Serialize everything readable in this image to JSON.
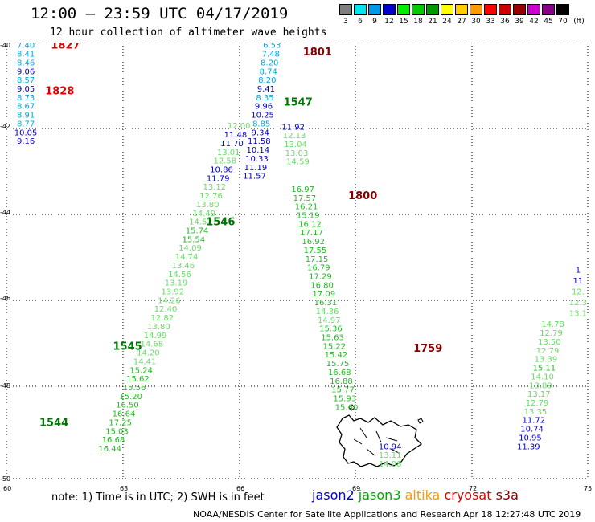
{
  "header": {
    "title": "12:00 – 23:59 UTC 04/17/2019",
    "subtitle": "12 hour collection of altimeter wave heights"
  },
  "legend": {
    "units": "(ft)",
    "bins": [
      {
        "label": "3",
        "color": "#7f7f7f"
      },
      {
        "label": "6",
        "color": "#00e5ee"
      },
      {
        "label": "9",
        "color": "#0099e6"
      },
      {
        "label": "12",
        "color": "#0000cc"
      },
      {
        "label": "15",
        "color": "#00ee00"
      },
      {
        "label": "18",
        "color": "#00cc00"
      },
      {
        "label": "21",
        "color": "#009900"
      },
      {
        "label": "24",
        "color": "#ffff00"
      },
      {
        "label": "27",
        "color": "#ffcc00"
      },
      {
        "label": "30",
        "color": "#ff9900"
      },
      {
        "label": "33",
        "color": "#ff0000"
      },
      {
        "label": "36",
        "color": "#cc0000"
      },
      {
        "label": "39",
        "color": "#990000"
      },
      {
        "label": "42",
        "color": "#cc00cc"
      },
      {
        "label": "45",
        "color": "#880088"
      },
      {
        "label": "70",
        "color": "#000000"
      }
    ]
  },
  "axes": {
    "lat_labels": [
      "-40",
      "-42",
      "-44",
      "-46",
      "-48",
      "-50"
    ],
    "lon_labels": [
      "60",
      "63",
      "66",
      "69",
      "72",
      "75"
    ]
  },
  "colors": {
    "c_light": "#66dd66",
    "c_mid": "#22bb22",
    "c_blue": "#0000cc",
    "c_cyan": "#00aadd",
    "c_red": "#dd0000",
    "c_maroon": "#880000",
    "c_dgreen": "#007700"
  },
  "map_data": {
    "time_labels": [
      {
        "t": "1827",
        "lat": -40.05,
        "lon": 61.15,
        "c": "c_red"
      },
      {
        "t": "1828",
        "lat": -41.1,
        "lon": 61.0,
        "c": "c_red"
      },
      {
        "t": "1801",
        "lat": -40.2,
        "lon": 67.65,
        "c": "c_maroon"
      },
      {
        "t": "1547",
        "lat": -41.35,
        "lon": 67.15,
        "c": "c_dgreen"
      },
      {
        "t": "1800",
        "lat": -43.5,
        "lon": 68.82,
        "c": "c_maroon"
      },
      {
        "t": "1546",
        "lat": -44.1,
        "lon": 65.15,
        "c": "c_dgreen"
      },
      {
        "t": "1759",
        "lat": -47.0,
        "lon": 70.5,
        "c": "c_maroon"
      },
      {
        "t": "1545",
        "lat": -46.95,
        "lon": 62.75,
        "c": "c_dgreen"
      },
      {
        "t": "1544",
        "lat": -48.7,
        "lon": 60.85,
        "c": "c_dgreen"
      }
    ],
    "obs_groups": [
      {
        "name": "track-s3a-1827",
        "lat0": -40.05,
        "lon0": 60.5,
        "dlat": 0.2,
        "dlon": 0.0,
        "values": [
          {
            "v": "7.40",
            "c": "c_cyan"
          },
          {
            "v": "8.41",
            "c": "c_cyan"
          },
          {
            "v": "8.46",
            "c": "c_cyan"
          },
          {
            "v": "9.06",
            "c": "c_blue"
          },
          {
            "v": "8.57",
            "c": "c_cyan"
          },
          {
            "v": "9.05",
            "c": "c_blue"
          },
          {
            "v": "8.73",
            "c": "c_cyan"
          },
          {
            "v": "8.67",
            "c": "c_cyan"
          },
          {
            "v": "8.91",
            "c": "c_cyan"
          },
          {
            "v": "8.77",
            "c": "c_cyan"
          },
          {
            "v": "10.05",
            "c": "c_blue"
          },
          {
            "v": "9.16",
            "c": "c_blue"
          }
        ]
      },
      {
        "name": "track-1801-north",
        "lat0": -40.05,
        "lon0": 66.85,
        "dlat": 0.2,
        "dlon": -0.03,
        "values": [
          {
            "v": "6.53",
            "c": "c_cyan"
          },
          {
            "v": "7.48",
            "c": "c_cyan"
          },
          {
            "v": "8.20",
            "c": "c_cyan"
          },
          {
            "v": "8.74",
            "c": "c_cyan"
          },
          {
            "v": "8.20",
            "c": "c_cyan"
          },
          {
            "v": "9.41",
            "c": "c_blue"
          },
          {
            "v": "8.35",
            "c": "c_cyan"
          },
          {
            "v": "9.96",
            "c": "c_blue"
          },
          {
            "v": "10.25",
            "c": "c_blue"
          },
          {
            "v": "8.85",
            "c": "c_cyan"
          },
          {
            "v": "9.34",
            "c": "c_blue"
          },
          {
            "v": "11.58",
            "c": "c_blue"
          },
          {
            "v": "10.14",
            "c": "c_blue"
          },
          {
            "v": "10.33",
            "c": "c_blue"
          },
          {
            "v": "11.19",
            "c": "c_blue"
          },
          {
            "v": "11.57",
            "c": "c_blue"
          }
        ]
      },
      {
        "name": "track-1546",
        "lat0": -41.9,
        "lon0": 66.0,
        "dlat": 0.2,
        "dlon": -0.09,
        "values": [
          {
            "v": "12.00",
            "c": "c_light"
          },
          {
            "v": "11.48",
            "c": "c_blue"
          },
          {
            "v": "11.70",
            "c": "c_blue"
          },
          {
            "v": "13.01",
            "c": "c_light"
          },
          {
            "v": "12.58",
            "c": "c_light"
          },
          {
            "v": "10.86",
            "c": "c_blue"
          },
          {
            "v": "11.79",
            "c": "c_blue"
          },
          {
            "v": "13.12",
            "c": "c_light"
          },
          {
            "v": "12.76",
            "c": "c_light"
          },
          {
            "v": "13.80",
            "c": "c_light"
          },
          {
            "v": "14.49",
            "c": "c_light"
          },
          {
            "v": "14.52",
            "c": "c_light"
          },
          {
            "v": "15.74",
            "c": "c_mid"
          },
          {
            "v": "15.54",
            "c": "c_mid"
          },
          {
            "v": "14.09",
            "c": "c_light"
          },
          {
            "v": "14.74",
            "c": "c_light"
          },
          {
            "v": "13.46",
            "c": "c_light"
          },
          {
            "v": "14.56",
            "c": "c_light"
          },
          {
            "v": "13.19",
            "c": "c_light"
          },
          {
            "v": "13.92",
            "c": "c_light"
          },
          {
            "v": "14.26",
            "c": "c_light"
          },
          {
            "v": "12.40",
            "c": "c_light"
          },
          {
            "v": "12.82",
            "c": "c_light"
          },
          {
            "v": "13.80",
            "c": "c_light"
          },
          {
            "v": "14.99",
            "c": "c_light"
          },
          {
            "v": "14.68",
            "c": "c_light"
          },
          {
            "v": "14.20",
            "c": "c_light"
          },
          {
            "v": "14.41",
            "c": "c_light"
          },
          {
            "v": "15.24",
            "c": "c_mid"
          },
          {
            "v": "15.62",
            "c": "c_mid"
          },
          {
            "v": "15.56",
            "c": "c_mid"
          },
          {
            "v": "15.20",
            "c": "c_mid"
          },
          {
            "v": "16.50",
            "c": "c_mid"
          },
          {
            "v": "16.64",
            "c": "c_mid"
          },
          {
            "v": "17.25",
            "c": "c_mid"
          },
          {
            "v": "15.03",
            "c": "c_mid"
          },
          {
            "v": "16.68",
            "c": "c_mid"
          },
          {
            "v": "16.44",
            "c": "c_mid"
          }
        ]
      },
      {
        "name": "track-1800",
        "lat0": -41.92,
        "lon0": 67.4,
        "dlat": 0.2,
        "dlon": 0.03,
        "values": [
          {
            "v": "11.92",
            "c": "c_blue"
          },
          {
            "v": "12.13",
            "c": "c_light"
          },
          {
            "v": "13.04",
            "c": "c_light"
          },
          {
            "v": "13.03",
            "c": "c_light"
          },
          {
            "v": "14.59",
            "c": "c_light"
          }
        ]
      },
      {
        "name": "track-1800-south",
        "lat0": -43.35,
        "lon0": 67.65,
        "dlat": 0.2,
        "dlon": 0.045,
        "values": [
          {
            "v": "16.97",
            "c": "c_mid"
          },
          {
            "v": "17.57",
            "c": "c_mid"
          },
          {
            "v": "16.21",
            "c": "c_mid"
          },
          {
            "v": "15.19",
            "c": "c_mid"
          },
          {
            "v": "16.12",
            "c": "c_mid"
          },
          {
            "v": "17.17",
            "c": "c_mid"
          },
          {
            "v": "16.92",
            "c": "c_mid"
          },
          {
            "v": "17.55",
            "c": "c_mid"
          },
          {
            "v": "17.15",
            "c": "c_mid"
          },
          {
            "v": "16.79",
            "c": "c_mid"
          },
          {
            "v": "17.29",
            "c": "c_mid"
          },
          {
            "v": "16.80",
            "c": "c_mid"
          },
          {
            "v": "17.09",
            "c": "c_mid"
          },
          {
            "v": "16.31",
            "c": "c_mid"
          },
          {
            "v": "14.36",
            "c": "c_light"
          },
          {
            "v": "14.97",
            "c": "c_light"
          },
          {
            "v": "15.36",
            "c": "c_mid"
          },
          {
            "v": "15.63",
            "c": "c_mid"
          },
          {
            "v": "15.22",
            "c": "c_mid"
          },
          {
            "v": "15.42",
            "c": "c_mid"
          },
          {
            "v": "15.75",
            "c": "c_mid"
          },
          {
            "v": "16.68",
            "c": "c_mid"
          },
          {
            "v": "16.88",
            "c": "c_mid"
          },
          {
            "v": "15.77",
            "c": "c_mid"
          },
          {
            "v": "15.93",
            "c": "c_mid"
          },
          {
            "v": "15.60",
            "c": "c_mid"
          }
        ]
      },
      {
        "name": "track-1759-tail",
        "lat0": -49.25,
        "lon0": 69.9,
        "dlat": 0.2,
        "dlon": 0.0,
        "values": [
          {
            "v": "10.94",
            "c": "c_blue"
          },
          {
            "v": "13.11",
            "c": "c_light"
          },
          {
            "v": "14.08",
            "c": "c_light"
          }
        ]
      },
      {
        "name": "track-east-edge",
        "lat0": -45.2,
        "lon0": 74.75,
        "dlat": 0.25,
        "dlon": 0.0,
        "values": [
          {
            "v": "1",
            "c": "c_blue"
          },
          {
            "v": "11",
            "c": "c_blue"
          },
          {
            "v": "12.",
            "c": "c_light"
          },
          {
            "v": "12.3",
            "c": "c_light"
          },
          {
            "v": "13.1",
            "c": "c_light"
          }
        ]
      },
      {
        "name": "track-east",
        "lat0": -46.45,
        "lon0": 74.1,
        "dlat": 0.2,
        "dlon": -0.045,
        "values": [
          {
            "v": "14.78",
            "c": "c_light"
          },
          {
            "v": "12.79",
            "c": "c_light"
          },
          {
            "v": "13.50",
            "c": "c_light"
          },
          {
            "v": "12.79",
            "c": "c_light"
          },
          {
            "v": "13.39",
            "c": "c_light"
          },
          {
            "v": "15.11",
            "c": "c_mid"
          },
          {
            "v": "14.10",
            "c": "c_light"
          },
          {
            "v": "13.89",
            "c": "c_light"
          },
          {
            "v": "13.17",
            "c": "c_light"
          },
          {
            "v": "12.79",
            "c": "c_light"
          },
          {
            "v": "13.35",
            "c": "c_light"
          },
          {
            "v": "11.72",
            "c": "c_blue"
          },
          {
            "v": "10.74",
            "c": "c_blue"
          },
          {
            "v": "10.95",
            "c": "c_blue"
          },
          {
            "v": "11.39",
            "c": "c_blue"
          }
        ]
      }
    ]
  },
  "footer": {
    "note": "note: 1) Time is in UTC; 2) SWH is in feet",
    "satellites": [
      {
        "name": "jason2",
        "color": "#0000dd"
      },
      {
        "name": "jason3",
        "color": "#00aa00"
      },
      {
        "name": "altika",
        "color": "#ff9900"
      },
      {
        "name": "cryosat",
        "color": "#dd0000"
      },
      {
        "name": "s3a",
        "color": "#880000"
      }
    ],
    "credit": "NOAA/NESDIS Center for Satellite Applications and Research",
    "timestamp": "Apr 18 12:27:48 UTC 2019"
  }
}
